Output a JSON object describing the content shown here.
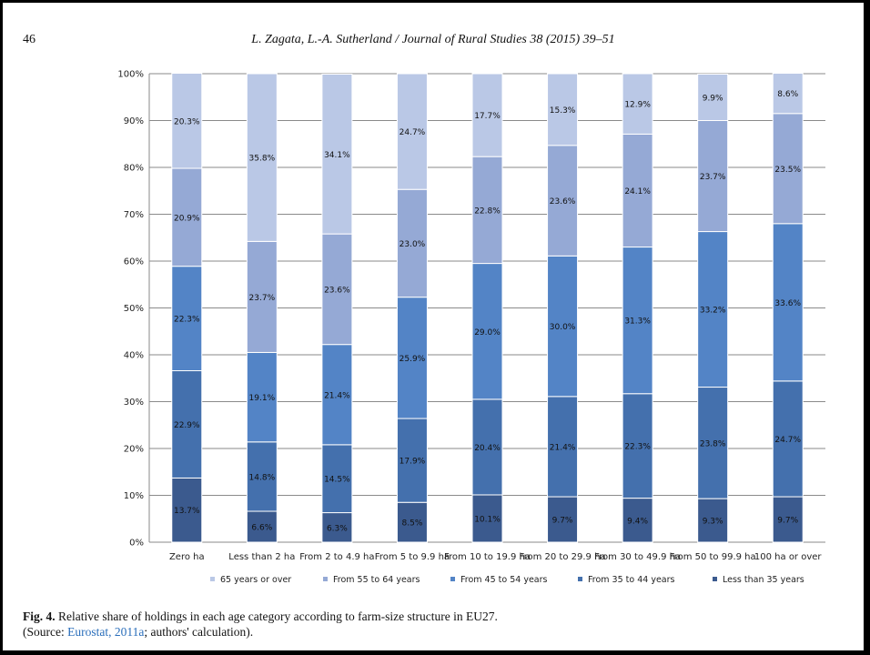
{
  "page_number": "46",
  "journal": "L. Zagata, L.-A. Sutherland / Journal of Rural Studies 38 (2015) 39–51",
  "caption": {
    "label": "Fig. 4.",
    "text": " Relative share of holdings in each age category according to farm-size structure in EU27.",
    "source_pre": "(Source: ",
    "source_link": "Eurostat, 2011a",
    "source_post": "; authors' calculation)."
  },
  "chart_data": {
    "type": "bar",
    "stacked": true,
    "categories": [
      "Zero ha",
      "Less than 2 ha",
      "From 2 to 4.9 ha",
      "From 5 to 9.9 ha",
      "From 10 to 19.9 ha",
      "From 20 to 29.9 ha",
      "From 30 to 49.9 ha",
      "From 50 to 99.9 ha",
      "100 ha or over"
    ],
    "series": [
      {
        "name": "Less than 35 years",
        "color": "#3b5a8e",
        "values": [
          13.7,
          6.6,
          6.3,
          8.5,
          10.1,
          9.7,
          9.4,
          9.3,
          9.7
        ]
      },
      {
        "name": "From 35 to 44 years",
        "color": "#4470ad",
        "values": [
          22.9,
          14.8,
          14.5,
          17.9,
          20.4,
          21.4,
          22.3,
          23.8,
          24.7
        ]
      },
      {
        "name": "From 45 to 54 years",
        "color": "#5384c6",
        "values": [
          22.3,
          19.1,
          21.4,
          25.9,
          29.0,
          30.0,
          31.3,
          33.2,
          33.6
        ]
      },
      {
        "name": "From 55 to 64 years",
        "color": "#95a9d5",
        "values": [
          20.9,
          23.7,
          23.6,
          23.0,
          22.8,
          23.6,
          24.1,
          23.7,
          23.5
        ]
      },
      {
        "name": "65 years or over",
        "color": "#bac8e6",
        "values": [
          20.3,
          35.8,
          34.1,
          24.7,
          17.7,
          15.3,
          12.9,
          9.9,
          8.6
        ]
      }
    ],
    "data_labels": [
      [
        "13.7%",
        "6.6%",
        "6.3%",
        "8.5%",
        "10.1%",
        "9.7%",
        "9.4%",
        "9.3%",
        "9.7%"
      ],
      [
        "22.9%",
        "14.8%",
        "14.5%",
        "17.9%",
        "20.4%",
        "21.4%",
        "22.3%",
        "23.8%",
        "24.7%"
      ],
      [
        "22.3%",
        "19.1%",
        "21.4%",
        "25.9%",
        "29.0%",
        "30.0%",
        "31.3%",
        "33.2%",
        "33.6%"
      ],
      [
        "20.9%",
        "23.7%",
        "23.6%",
        "23.0%",
        "22.8%",
        "23.6%",
        "24.1%",
        "23.7%",
        "23.5%"
      ],
      [
        "20.3%",
        "35.8%",
        "34.1%",
        "24.7%",
        "17.7%",
        "15.3%",
        "12.9%",
        "9.9%",
        "8.6%"
      ]
    ],
    "y_ticks": [
      "0%",
      "10%",
      "20%",
      "30%",
      "40%",
      "50%",
      "60%",
      "70%",
      "80%",
      "90%",
      "100%"
    ],
    "ylim": [
      0,
      100
    ],
    "grid": true,
    "legend_position": "bottom",
    "legend_order": [
      4,
      3,
      2,
      1,
      0
    ]
  }
}
